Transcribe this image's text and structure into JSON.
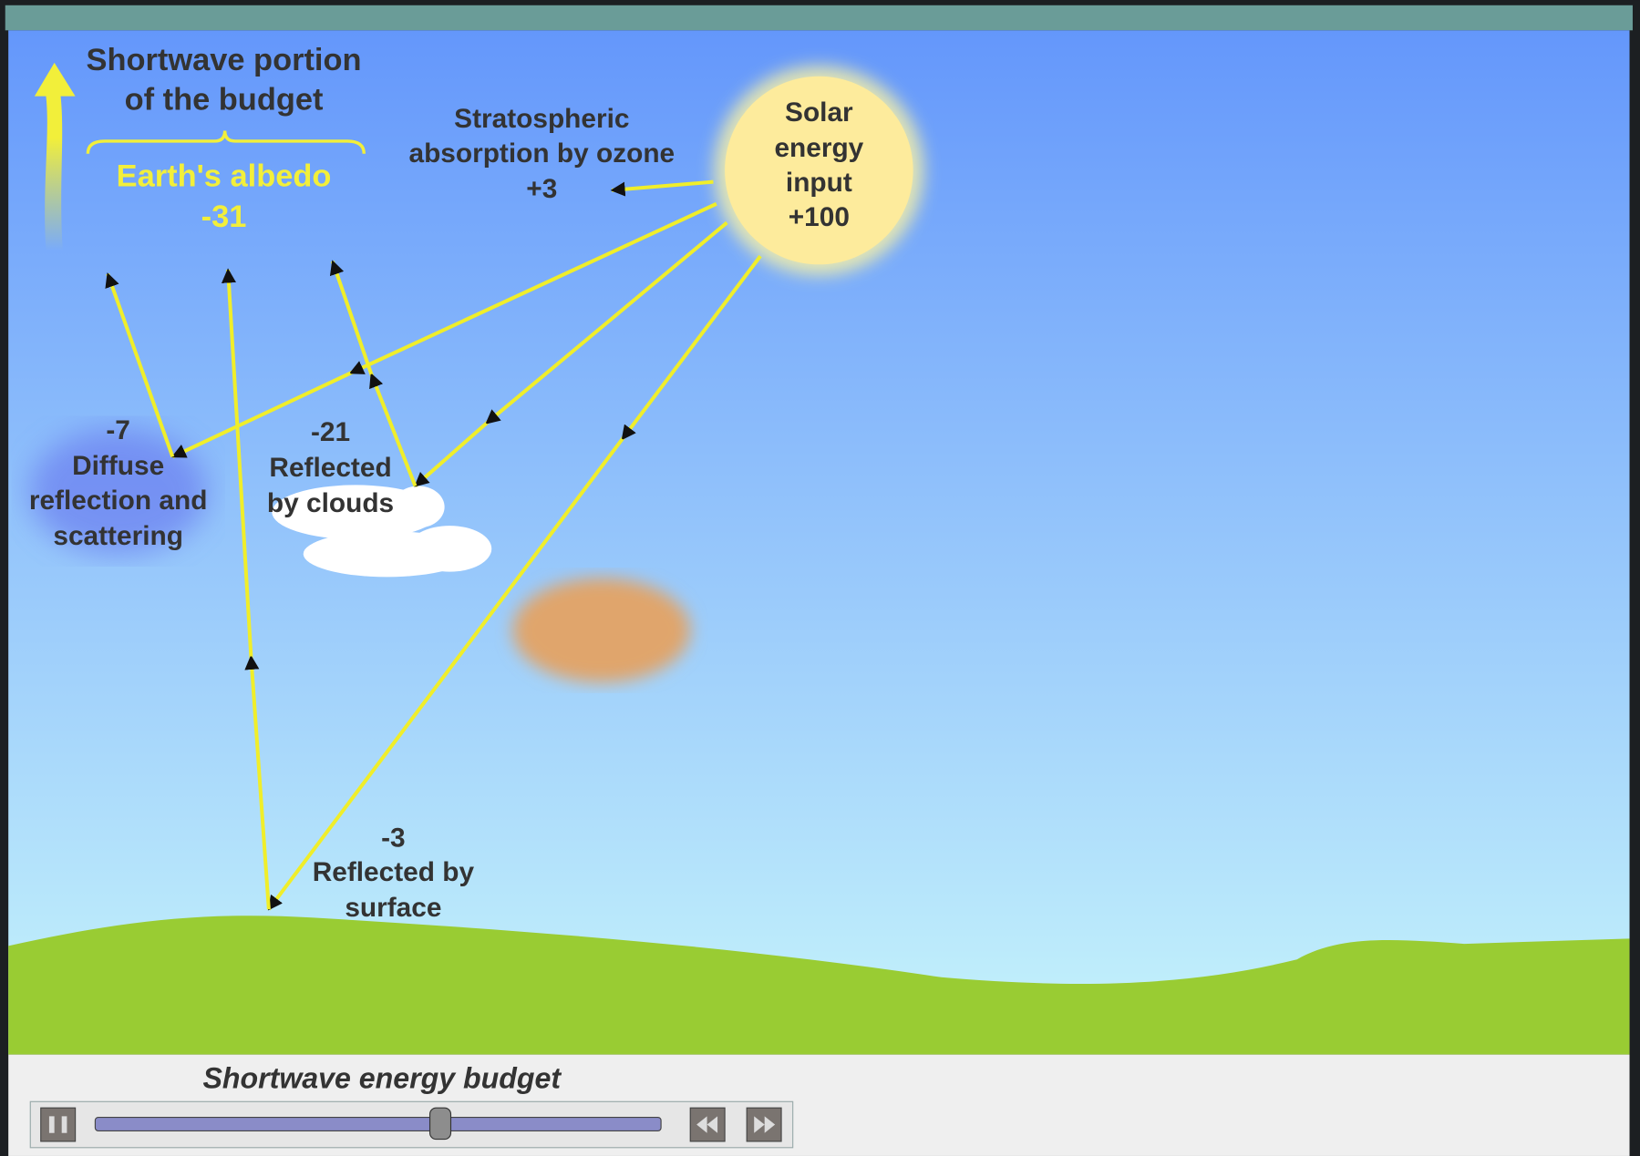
{
  "header": {
    "lines": [
      "Shortwave portion",
      "of the budget"
    ]
  },
  "albedo": {
    "label": "Earth's albedo",
    "value": "-31"
  },
  "ozone": {
    "lines": [
      "Stratospheric",
      "absorption by ozone"
    ],
    "value": "+3"
  },
  "solar": {
    "lines": [
      "Solar",
      "energy",
      "input"
    ],
    "value": "+100"
  },
  "diffuse": {
    "value": "-7",
    "lines": [
      "Diffuse",
      "reflection and",
      "scattering"
    ]
  },
  "clouds": {
    "value": "-21",
    "lines": [
      "Reflected",
      "by clouds"
    ]
  },
  "surface": {
    "value": "-3",
    "lines": [
      "Reflected by",
      "surface"
    ]
  },
  "footer": {
    "title": "Shortwave energy budget"
  }
}
